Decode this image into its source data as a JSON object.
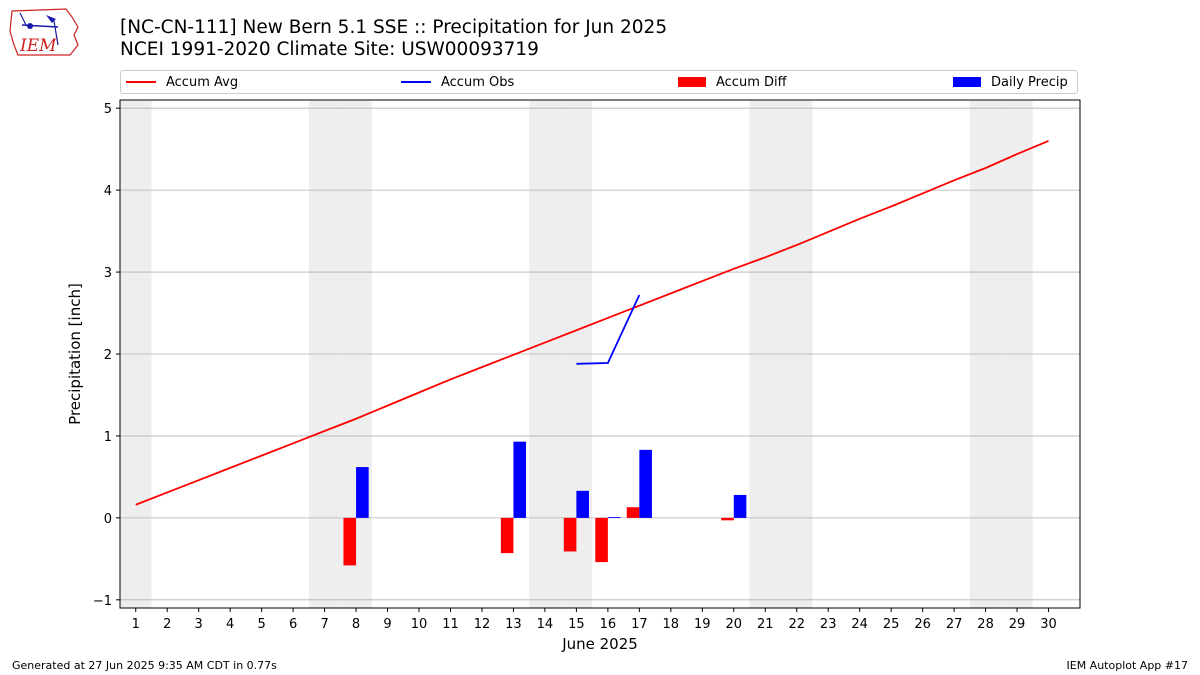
{
  "header": {
    "title_line1": "[NC-CN-111] New Bern 5.1 SSE :: Precipitation for Jun 2025",
    "title_line2": "NCEI 1991-2020 Climate Site: USW00093719",
    "logo_text": "IEM"
  },
  "legend": {
    "items": [
      {
        "label": "Accum Avg",
        "kind": "line",
        "color": "#ff0000"
      },
      {
        "label": "Accum Obs",
        "kind": "line",
        "color": "#0000ff"
      },
      {
        "label": "Accum Diff",
        "kind": "bar",
        "color": "#ff0000"
      },
      {
        "label": "Daily Precip",
        "kind": "bar",
        "color": "#0000ff"
      }
    ]
  },
  "footer": {
    "left": "Generated at 27 Jun 2025 9:35 AM CDT in 0.77s",
    "right": "IEM Autoplot App #17"
  },
  "chart_data": {
    "type": "bar",
    "xlabel": "June 2025",
    "ylabel": "Precipitation [inch]",
    "xlim": [
      0.5,
      31
    ],
    "ylim": [
      -1.1,
      5.1
    ],
    "yticks": [
      -1,
      0,
      1,
      2,
      3,
      4,
      5
    ],
    "xticks": [
      1,
      2,
      3,
      4,
      5,
      6,
      7,
      8,
      9,
      10,
      11,
      12,
      13,
      14,
      15,
      16,
      17,
      18,
      19,
      20,
      21,
      22,
      23,
      24,
      25,
      26,
      27,
      28,
      29,
      30
    ],
    "weekend_days": [
      1,
      7,
      8,
      14,
      15,
      21,
      22,
      28,
      29
    ],
    "grid": "horizontal",
    "colors": {
      "avg": "#ff0000",
      "obs": "#0000ff",
      "diff": "#ff0000",
      "daily": "#0000ff",
      "weekend": "#eeeeee",
      "grid": "#b0b0b0"
    },
    "series": [
      {
        "name": "Accum Avg",
        "type": "line",
        "x": [
          1,
          2,
          3,
          4,
          5,
          6,
          7,
          8,
          9,
          10,
          11,
          12,
          13,
          14,
          15,
          16,
          17,
          18,
          19,
          20,
          21,
          22,
          23,
          24,
          25,
          26,
          27,
          28,
          29,
          30
        ],
        "values": [
          0.16,
          0.31,
          0.46,
          0.61,
          0.76,
          0.91,
          1.06,
          1.21,
          1.37,
          1.53,
          1.69,
          1.84,
          1.99,
          2.14,
          2.29,
          2.44,
          2.59,
          2.74,
          2.89,
          3.04,
          3.18,
          3.33,
          3.49,
          3.65,
          3.8,
          3.96,
          4.12,
          4.27,
          4.44,
          4.6
        ]
      },
      {
        "name": "Accum Obs",
        "type": "line",
        "x": [
          15,
          16,
          17
        ],
        "values": [
          1.88,
          1.89,
          2.72
        ]
      },
      {
        "name": "Accum Diff",
        "type": "bar",
        "x": [
          8,
          13,
          15,
          16,
          17,
          20
        ],
        "values": [
          -0.58,
          -0.43,
          -0.41,
          -0.54,
          0.13,
          -0.03
        ]
      },
      {
        "name": "Daily Precip",
        "type": "bar",
        "x": [
          8,
          13,
          15,
          16,
          17,
          20
        ],
        "values": [
          0.62,
          0.93,
          0.33,
          0.01,
          0.83,
          0.28
        ]
      }
    ]
  }
}
